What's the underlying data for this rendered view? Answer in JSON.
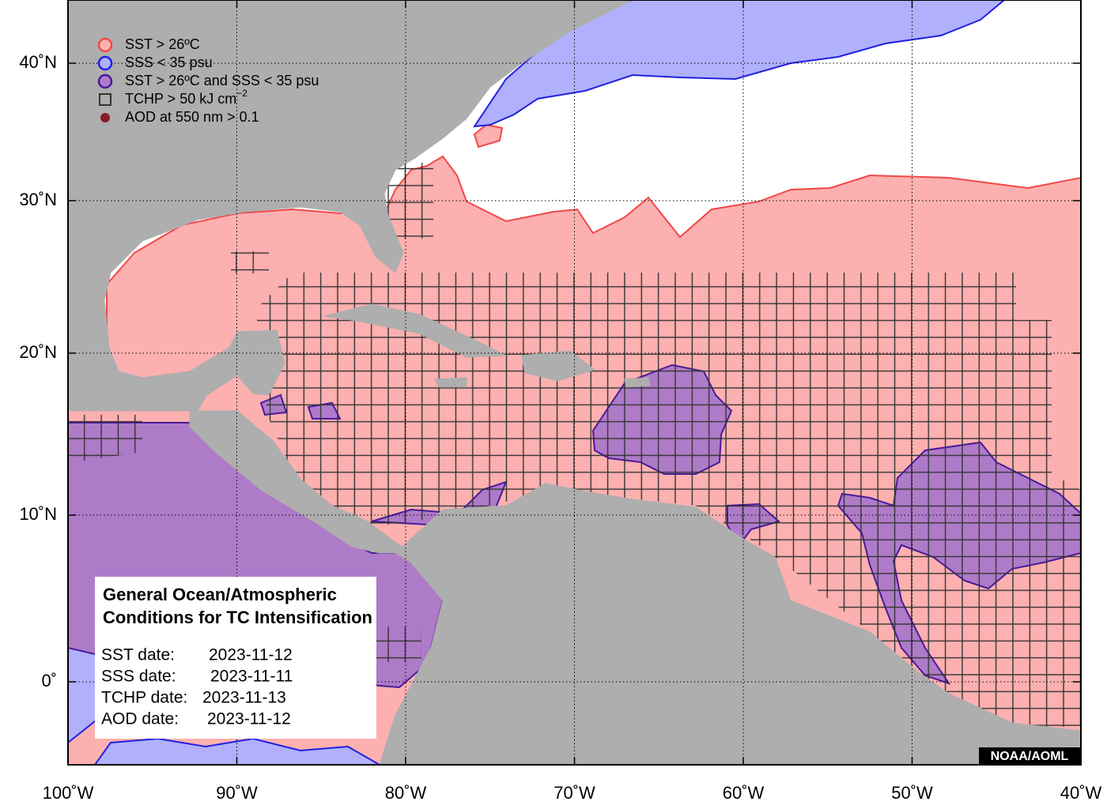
{
  "legend": [
    {
      "label": "SST > 26ºC"
    },
    {
      "label": "SSS < 35 psu"
    },
    {
      "label": "SST > 26ºC and SSS < 35 psu"
    },
    {
      "label": "TCHP > 50 kJ cm",
      "superscript": "−2"
    },
    {
      "label": "AOD at 550 nm > 0.1"
    }
  ],
  "axes": {
    "x_ticks": [
      {
        "value": -100,
        "label": "100˚W"
      },
      {
        "value": -90,
        "label": "90˚W"
      },
      {
        "value": -80,
        "label": "80˚W"
      },
      {
        "value": -70,
        "label": "70˚W"
      },
      {
        "value": -60,
        "label": "60˚W"
      },
      {
        "value": -50,
        "label": "50˚W"
      },
      {
        "value": -40,
        "label": "40˚W"
      }
    ],
    "y_ticks": [
      {
        "value": 40,
        "label": "40˚N"
      },
      {
        "value": 30,
        "label": "30˚N"
      },
      {
        "value": 20,
        "label": "20˚N"
      },
      {
        "value": 10,
        "label": "10˚N"
      },
      {
        "value": 0,
        "label": "0˚"
      }
    ]
  },
  "info_box": {
    "title": [
      "General Ocean/Atmospheric",
      "Conditions for TC Intensification"
    ],
    "dates": [
      {
        "label": "SST date:",
        "value": "2023-11-12"
      },
      {
        "label": "SSS date:",
        "value": "2023-11-11"
      },
      {
        "label": "TCHP date:",
        "value": "2023-11-13"
      },
      {
        "label": "AOD date:",
        "value": "2023-11-12"
      }
    ]
  },
  "credit": "NOAA/AOML"
}
